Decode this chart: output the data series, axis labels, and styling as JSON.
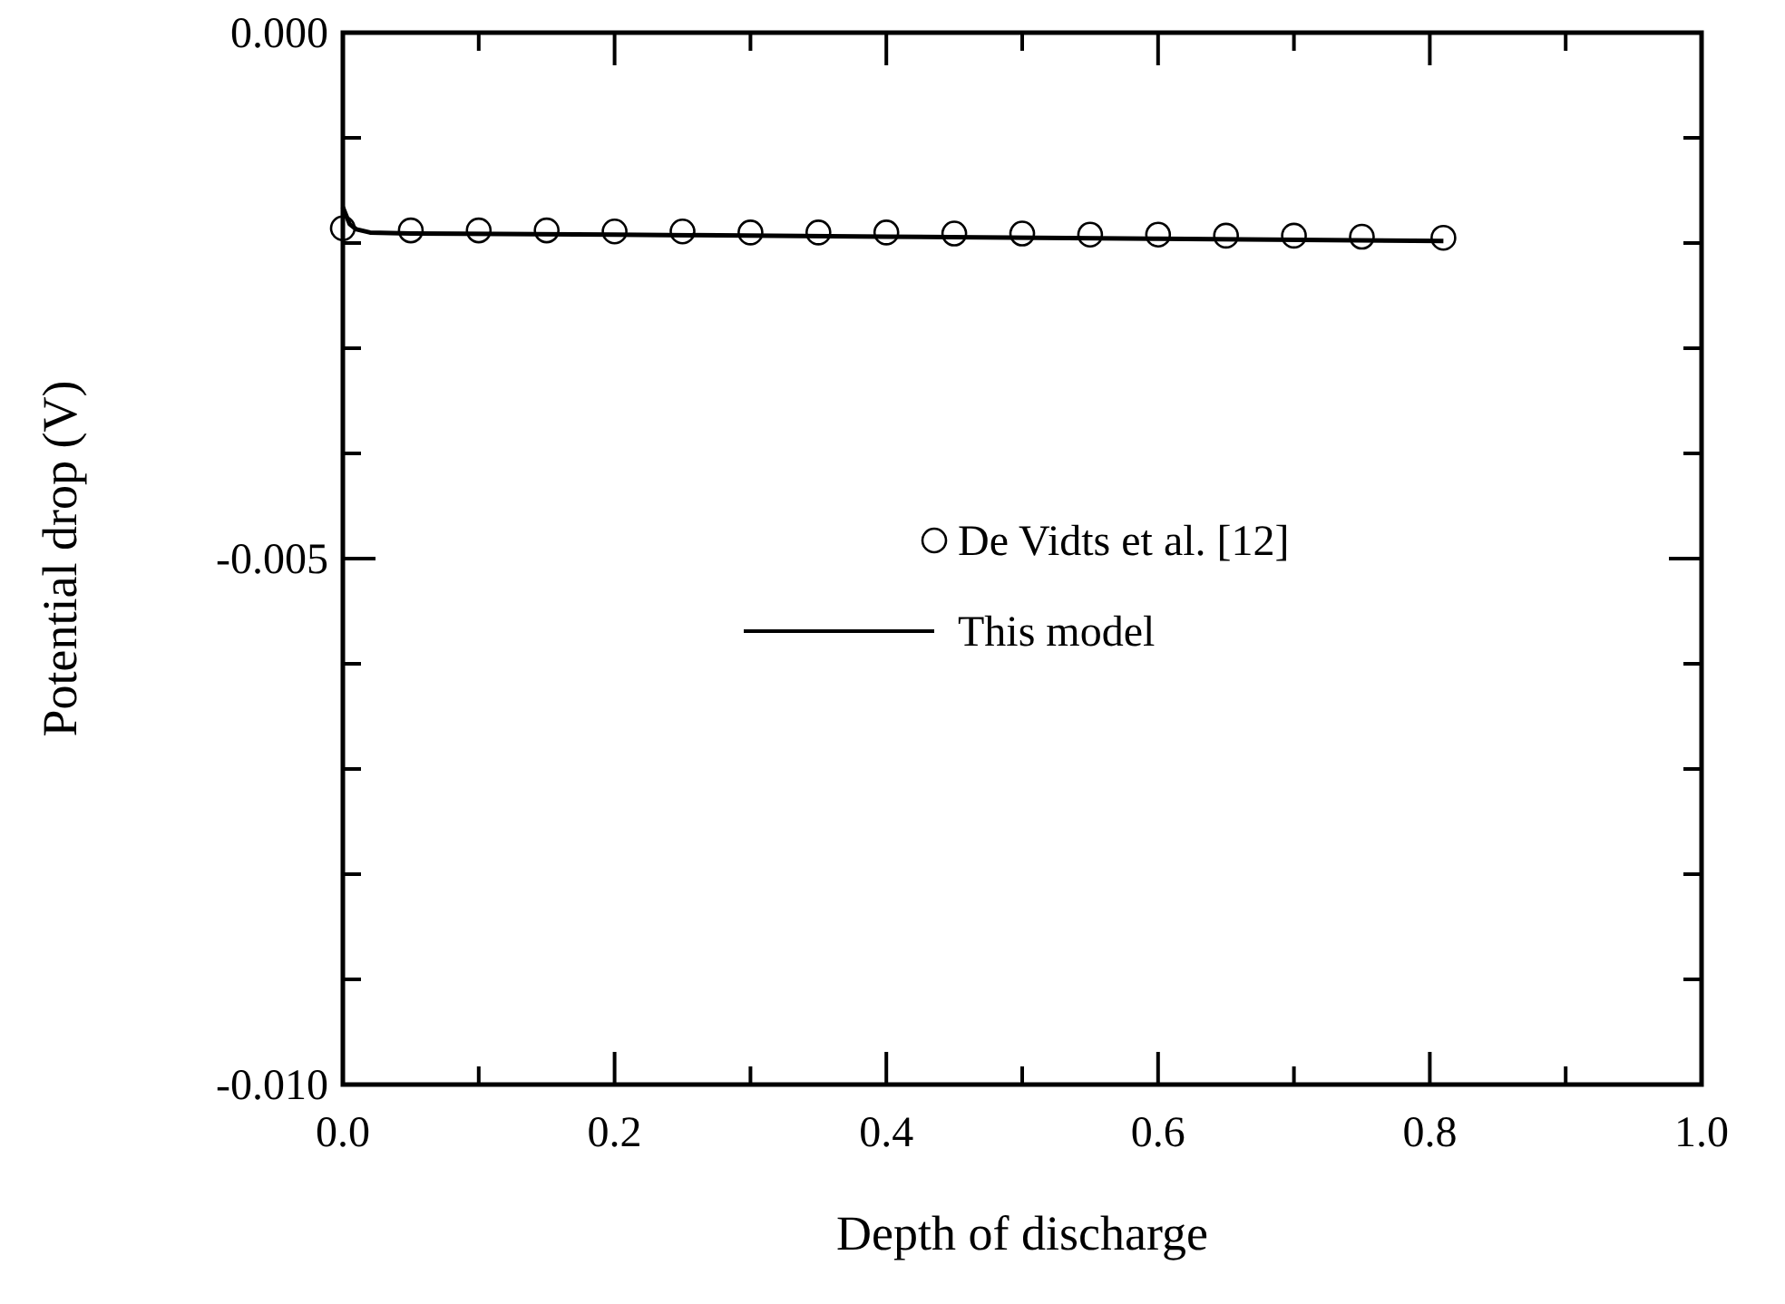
{
  "chart_data": {
    "type": "scatter",
    "xlabel": "Depth of discharge",
    "ylabel": "Potential drop (V)",
    "xlim": [
      0,
      1
    ],
    "ylim": [
      -0.01,
      0
    ],
    "xticks": [
      {
        "value": 0,
        "label": "0.0"
      },
      {
        "value": 0.1,
        "label": null
      },
      {
        "value": 0.2,
        "label": "0.2"
      },
      {
        "value": 0.3,
        "label": null
      },
      {
        "value": 0.4,
        "label": "0.4"
      },
      {
        "value": 0.5,
        "label": null
      },
      {
        "value": 0.6,
        "label": "0.6"
      },
      {
        "value": 0.7,
        "label": null
      },
      {
        "value": 0.8,
        "label": "0.8"
      },
      {
        "value": 0.9,
        "label": null
      },
      {
        "value": 1,
        "label": "1.0"
      }
    ],
    "yticks": [
      {
        "value": -0.01,
        "label": "-0.010"
      },
      {
        "value": -0.009,
        "label": null
      },
      {
        "value": -0.008,
        "label": null
      },
      {
        "value": -0.007,
        "label": null
      },
      {
        "value": -0.006,
        "label": null
      },
      {
        "value": -0.005,
        "label": "-0.005"
      },
      {
        "value": -0.004,
        "label": null
      },
      {
        "value": -0.003,
        "label": null
      },
      {
        "value": -0.002,
        "label": null
      },
      {
        "value": -0.001,
        "label": null
      },
      {
        "value": 0,
        "label": "0.000"
      }
    ],
    "grid": false,
    "legend": "center",
    "series": [
      {
        "name": "De Vidts et al. [12]",
        "marker": "circle",
        "color": "#000000",
        "x": [
          0,
          0.05,
          0.1,
          0.15,
          0.2,
          0.25,
          0.3,
          0.35,
          0.4,
          0.45,
          0.5,
          0.55,
          0.6,
          0.65,
          0.7,
          0.75,
          0.81
        ],
        "values": [
          -0.00186,
          -0.00188,
          -0.00188,
          -0.00188,
          -0.00189,
          -0.00189,
          -0.0019,
          -0.0019,
          -0.0019,
          -0.00191,
          -0.00191,
          -0.00192,
          -0.00192,
          -0.00193,
          -0.00193,
          -0.00194,
          -0.00195
        ]
      },
      {
        "name": "This model",
        "type": "line",
        "line_style": "solid",
        "color": "#000000",
        "x": [
          0,
          0.005,
          0.01,
          0.02,
          0.05,
          0.2,
          0.4,
          0.6,
          0.81
        ],
        "values": [
          -0.00166,
          -0.00182,
          -0.00187,
          -0.0019,
          -0.00191,
          -0.00192,
          -0.00194,
          -0.00196,
          -0.00198
        ]
      }
    ]
  }
}
